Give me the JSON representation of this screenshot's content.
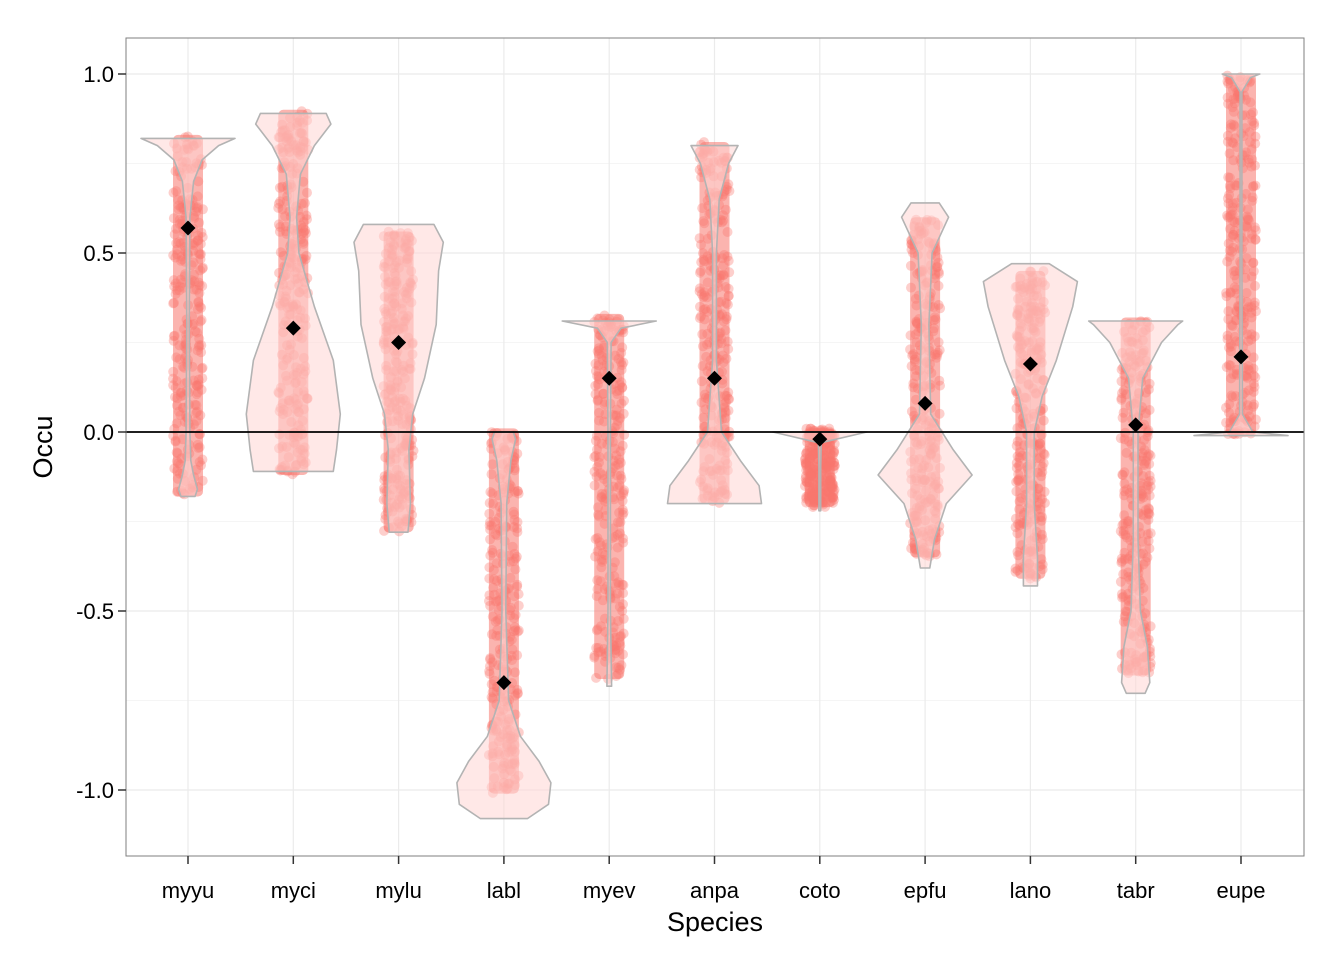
{
  "chart_data": {
    "type": "violin",
    "xlabel": "Species",
    "ylabel": "Occu",
    "ylim": [
      -1.18,
      1.1
    ],
    "yticks": [
      -1.0,
      -0.5,
      0.0,
      0.5,
      1.0
    ],
    "ytick_labels": [
      "-1.0",
      "-0.5",
      "0.0",
      "0.5",
      "1.0"
    ],
    "grid": true,
    "reference_line_y": 0.0,
    "colors": {
      "points": "#f8766d",
      "violin_fill": "#ffd6d3",
      "violin_outline": "#b3b3b3",
      "mean_marker": "#000000",
      "grid": "#ebebeb",
      "panel_border": "#7f7f7f"
    },
    "categories": [
      "myyu",
      "myci",
      "mylu",
      "labl",
      "myev",
      "anpa",
      "coto",
      "epfu",
      "lano",
      "tabr",
      "eupe"
    ],
    "series": [
      {
        "category": "myyu",
        "mean": 0.57,
        "min": -0.18,
        "max": 0.83,
        "violin_profile": [
          [
            -0.18,
            0.15
          ],
          [
            -0.16,
            0.2
          ],
          [
            -0.12,
            0.12
          ],
          [
            -0.08,
            0.06
          ],
          [
            0.0,
            0.04
          ],
          [
            0.3,
            0.025
          ],
          [
            0.6,
            0.04
          ],
          [
            0.7,
            0.12
          ],
          [
            0.76,
            0.3
          ],
          [
            0.8,
            0.65
          ],
          [
            0.82,
            1.0
          ]
        ]
      },
      {
        "category": "myci",
        "mean": 0.29,
        "min": -0.12,
        "max": 0.9,
        "violin_profile": [
          [
            -0.11,
            0.85
          ],
          [
            -0.05,
            0.92
          ],
          [
            0.05,
            1.0
          ],
          [
            0.2,
            0.85
          ],
          [
            0.35,
            0.45
          ],
          [
            0.5,
            0.12
          ],
          [
            0.6,
            0.07
          ],
          [
            0.72,
            0.15
          ],
          [
            0.8,
            0.45
          ],
          [
            0.86,
            0.8
          ],
          [
            0.89,
            0.7
          ]
        ]
      },
      {
        "category": "mylu",
        "mean": 0.25,
        "min": -0.28,
        "max": 0.56,
        "violin_profile": [
          [
            -0.28,
            0.2
          ],
          [
            -0.2,
            0.25
          ],
          [
            -0.05,
            0.22
          ],
          [
            0.05,
            0.3
          ],
          [
            0.15,
            0.55
          ],
          [
            0.3,
            0.8
          ],
          [
            0.45,
            0.85
          ],
          [
            0.53,
            0.95
          ],
          [
            0.58,
            0.75
          ]
        ]
      },
      {
        "category": "labl",
        "mean": -0.7,
        "min": -1.01,
        "max": 0.01,
        "violin_profile": [
          [
            -1.08,
            0.5
          ],
          [
            -1.04,
            0.95
          ],
          [
            -0.98,
            1.0
          ],
          [
            -0.92,
            0.75
          ],
          [
            -0.85,
            0.35
          ],
          [
            -0.75,
            0.1
          ],
          [
            -0.5,
            0.04
          ],
          [
            -0.2,
            0.06
          ],
          [
            -0.08,
            0.15
          ],
          [
            -0.02,
            0.25
          ],
          [
            0.0,
            0.2
          ]
        ]
      },
      {
        "category": "myev",
        "mean": 0.15,
        "min": -0.69,
        "max": 0.33,
        "violin_profile": [
          [
            -0.71,
            0.05
          ],
          [
            -0.5,
            0.025
          ],
          [
            0.0,
            0.025
          ],
          [
            0.25,
            0.04
          ],
          [
            0.29,
            0.25
          ],
          [
            0.31,
            1.0
          ]
        ]
      },
      {
        "category": "anpa",
        "mean": 0.15,
        "min": -0.2,
        "max": 0.81,
        "violin_profile": [
          [
            -0.2,
            1.0
          ],
          [
            -0.15,
            0.95
          ],
          [
            -0.08,
            0.55
          ],
          [
            0.0,
            0.15
          ],
          [
            0.2,
            0.04
          ],
          [
            0.5,
            0.04
          ],
          [
            0.65,
            0.1
          ],
          [
            0.75,
            0.3
          ],
          [
            0.8,
            0.5
          ]
        ]
      },
      {
        "category": "coto",
        "mean": -0.02,
        "min": -0.21,
        "max": 0.01,
        "violin_profile": [
          [
            -0.22,
            0.02
          ],
          [
            -0.1,
            0.02
          ],
          [
            -0.03,
            0.03
          ],
          [
            0.0,
            1.0
          ]
        ]
      },
      {
        "category": "epfu",
        "mean": 0.08,
        "min": -0.35,
        "max": 0.6,
        "violin_profile": [
          [
            -0.38,
            0.1
          ],
          [
            -0.3,
            0.2
          ],
          [
            -0.2,
            0.45
          ],
          [
            -0.12,
            1.0
          ],
          [
            -0.05,
            0.6
          ],
          [
            0.05,
            0.12
          ],
          [
            0.3,
            0.08
          ],
          [
            0.5,
            0.15
          ],
          [
            0.6,
            0.5
          ],
          [
            0.64,
            0.3
          ]
        ]
      },
      {
        "category": "lano",
        "mean": 0.19,
        "min": -0.41,
        "max": 0.45,
        "violin_profile": [
          [
            -0.43,
            0.15
          ],
          [
            -0.35,
            0.15
          ],
          [
            -0.2,
            0.08
          ],
          [
            0.0,
            0.08
          ],
          [
            0.1,
            0.25
          ],
          [
            0.2,
            0.55
          ],
          [
            0.35,
            0.9
          ],
          [
            0.42,
            1.0
          ],
          [
            0.47,
            0.4
          ]
        ]
      },
      {
        "category": "tabr",
        "mean": 0.02,
        "min": -0.68,
        "max": 0.32,
        "violin_profile": [
          [
            -0.73,
            0.2
          ],
          [
            -0.7,
            0.3
          ],
          [
            -0.6,
            0.25
          ],
          [
            -0.5,
            0.1
          ],
          [
            -0.3,
            0.05
          ],
          [
            0.0,
            0.05
          ],
          [
            0.15,
            0.15
          ],
          [
            0.25,
            0.55
          ],
          [
            0.3,
            0.9
          ],
          [
            0.31,
            1.0
          ]
        ]
      },
      {
        "category": "eupe",
        "mean": 0.21,
        "min": -0.01,
        "max": 1.0,
        "violin_profile": [
          [
            -0.01,
            1.0
          ],
          [
            0.0,
            0.25
          ],
          [
            0.05,
            0.03
          ],
          [
            0.5,
            0.02
          ],
          [
            0.95,
            0.02
          ],
          [
            0.99,
            0.2
          ],
          [
            1.0,
            0.4
          ]
        ]
      }
    ]
  }
}
